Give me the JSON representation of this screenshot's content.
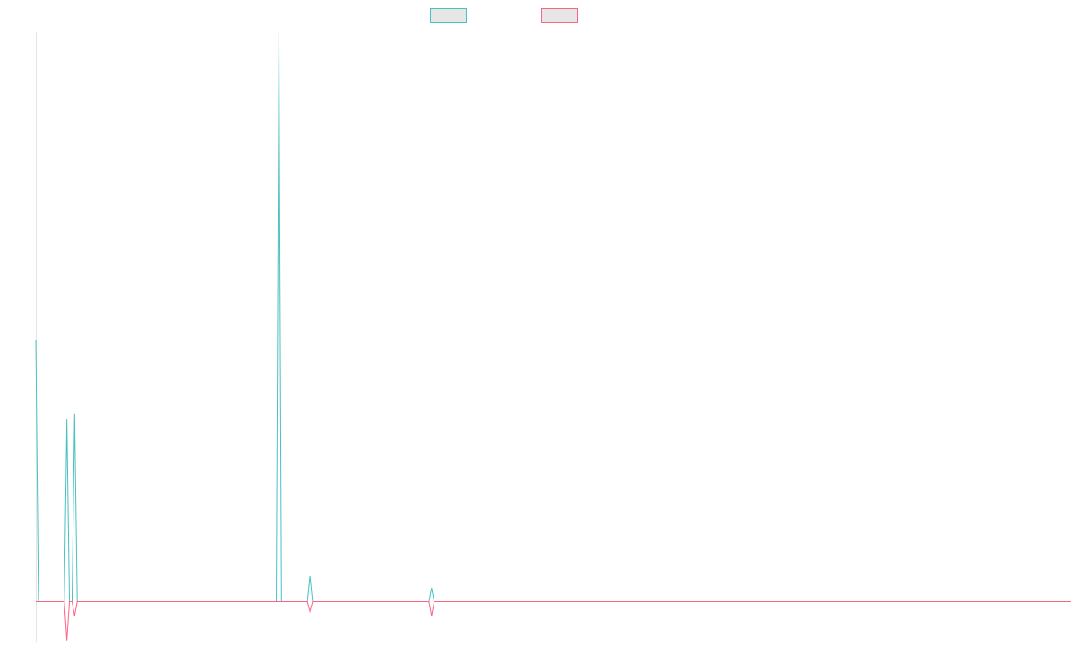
{
  "chart_data": {
    "type": "line",
    "x": [
      0,
      1,
      11,
      12,
      13,
      14,
      15,
      16,
      93,
      94,
      95,
      105,
      106,
      107,
      152,
      153,
      154,
      400
    ],
    "xlim": [
      0,
      400
    ],
    "ylim": [
      -0.07,
      1
    ],
    "series": [
      {
        "color": "#4bc0c0",
        "values": [
          0.46,
          0,
          0,
          0.32,
          0,
          0,
          0.33,
          0,
          0,
          1,
          0,
          0,
          0.045,
          0,
          0,
          0.024,
          0,
          0
        ]
      },
      {
        "color": "#ff6384",
        "values": [
          0,
          0,
          0,
          -0.068,
          0,
          0,
          -0.025,
          0,
          0,
          0,
          0,
          0,
          -0.017,
          0,
          0,
          -0.025,
          0,
          0
        ]
      }
    ]
  }
}
